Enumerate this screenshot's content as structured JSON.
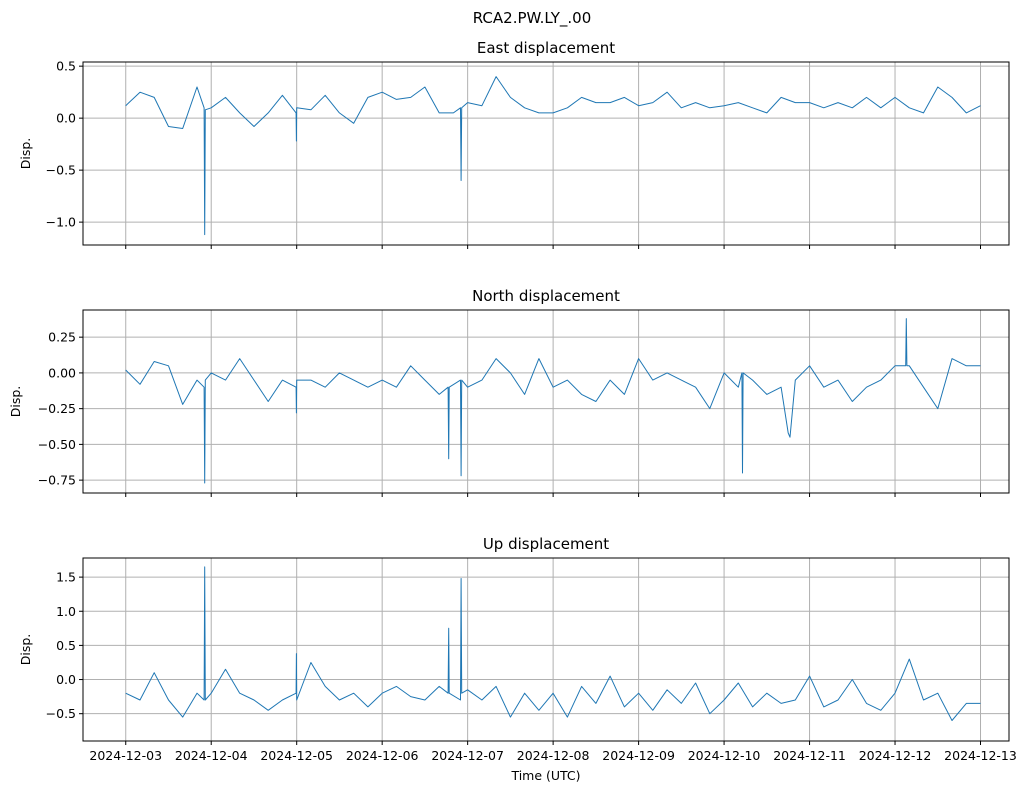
{
  "figure": {
    "suptitle": "RCA2.PW.LY_.00",
    "xlabel": "Time (UTC)",
    "grid": true,
    "sharex": true,
    "line_color": "#1f77b4"
  },
  "chart_data": [
    {
      "type": "line",
      "title": "East displacement",
      "xlabel": "",
      "ylabel": "Disp.",
      "xlim": [
        "2024-12-02T12:00",
        "2024-12-13T08:00"
      ],
      "ylim": [
        -1.22,
        0.54
      ],
      "yticks": [
        0.5,
        0.0,
        -0.5,
        -1.0
      ],
      "ytick_labels": [
        "0.5",
        "0.0",
        "−0.5",
        "−1.0"
      ],
      "xticks": [
        "2024-12-03",
        "2024-12-04",
        "2024-12-05",
        "2024-12-06",
        "2024-12-07",
        "2024-12-08",
        "2024-12-09",
        "2024-12-10",
        "2024-12-11",
        "2024-12-12",
        "2024-12-13"
      ],
      "xtick_labels_visible": false,
      "series": [
        {
          "x": [
            "2024-12-03T00:00",
            "2024-12-03T04:00",
            "2024-12-03T08:00",
            "2024-12-03T12:00",
            "2024-12-03T16:00",
            "2024-12-03T20:00",
            "2024-12-03T22:00",
            "2024-12-03T22:10",
            "2024-12-03T22:20",
            "2024-12-04T00:00",
            "2024-12-04T04:00",
            "2024-12-04T08:00",
            "2024-12-04T12:00",
            "2024-12-04T16:00",
            "2024-12-04T20:00",
            "2024-12-04T23:50",
            "2024-12-04T23:55",
            "2024-12-05T00:00",
            "2024-12-05T04:00",
            "2024-12-05T08:00",
            "2024-12-05T12:00",
            "2024-12-05T16:00",
            "2024-12-05T20:00",
            "2024-12-06T00:00",
            "2024-12-06T04:00",
            "2024-12-06T08:00",
            "2024-12-06T12:00",
            "2024-12-06T16:00",
            "2024-12-06T20:00",
            "2024-12-06T22:00",
            "2024-12-06T22:10",
            "2024-12-06T22:20",
            "2024-12-07T00:00",
            "2024-12-07T04:00",
            "2024-12-07T08:00",
            "2024-12-07T12:00",
            "2024-12-07T16:00",
            "2024-12-07T20:00",
            "2024-12-08T00:00",
            "2024-12-08T04:00",
            "2024-12-08T08:00",
            "2024-12-08T12:00",
            "2024-12-08T16:00",
            "2024-12-08T20:00",
            "2024-12-09T00:00",
            "2024-12-09T04:00",
            "2024-12-09T08:00",
            "2024-12-09T12:00",
            "2024-12-09T16:00",
            "2024-12-09T20:00",
            "2024-12-10T00:00",
            "2024-12-10T04:00",
            "2024-12-10T08:00",
            "2024-12-10T12:00",
            "2024-12-10T16:00",
            "2024-12-10T20:00",
            "2024-12-11T00:00",
            "2024-12-11T04:00",
            "2024-12-11T08:00",
            "2024-12-11T12:00",
            "2024-12-11T16:00",
            "2024-12-11T20:00",
            "2024-12-12T00:00",
            "2024-12-12T04:00",
            "2024-12-12T08:00",
            "2024-12-12T12:00",
            "2024-12-12T16:00",
            "2024-12-12T20:00",
            "2024-12-13T00:00"
          ],
          "y": [
            0.12,
            0.25,
            0.2,
            -0.08,
            -0.1,
            0.3,
            0.1,
            -1.12,
            0.08,
            0.1,
            0.2,
            0.05,
            -0.08,
            0.05,
            0.22,
            0.05,
            -0.22,
            0.1,
            0.08,
            0.22,
            0.05,
            -0.05,
            0.2,
            0.25,
            0.18,
            0.2,
            0.3,
            0.05,
            0.05,
            0.1,
            -0.6,
            0.1,
            0.15,
            0.12,
            0.4,
            0.2,
            0.1,
            0.05,
            0.05,
            0.1,
            0.2,
            0.15,
            0.15,
            0.2,
            0.12,
            0.15,
            0.25,
            0.1,
            0.15,
            0.1,
            0.12,
            0.15,
            0.1,
            0.05,
            0.2,
            0.15,
            0.15,
            0.1,
            0.15,
            0.1,
            0.2,
            0.1,
            0.2,
            0.1,
            0.05,
            0.3,
            0.2,
            0.05,
            0.12
          ]
        }
      ]
    },
    {
      "type": "line",
      "title": "North displacement",
      "xlabel": "",
      "ylabel": "Disp.",
      "xlim": [
        "2024-12-02T12:00",
        "2024-12-13T08:00"
      ],
      "ylim": [
        -0.84,
        0.44
      ],
      "yticks": [
        0.25,
        0.0,
        -0.25,
        -0.5,
        -0.75
      ],
      "ytick_labels": [
        "0.25",
        "0.00",
        "−0.25",
        "−0.50",
        "−0.75"
      ],
      "xticks": [
        "2024-12-03",
        "2024-12-04",
        "2024-12-05",
        "2024-12-06",
        "2024-12-07",
        "2024-12-08",
        "2024-12-09",
        "2024-12-10",
        "2024-12-11",
        "2024-12-12",
        "2024-12-13"
      ],
      "xtick_labels_visible": false,
      "series": [
        {
          "x": [
            "2024-12-03T00:00",
            "2024-12-03T04:00",
            "2024-12-03T08:00",
            "2024-12-03T12:00",
            "2024-12-03T16:00",
            "2024-12-03T20:00",
            "2024-12-03T22:00",
            "2024-12-03T22:10",
            "2024-12-03T22:20",
            "2024-12-04T00:00",
            "2024-12-04T04:00",
            "2024-12-04T08:00",
            "2024-12-04T12:00",
            "2024-12-04T16:00",
            "2024-12-04T20:00",
            "2024-12-04T23:50",
            "2024-12-04T23:55",
            "2024-12-05T00:00",
            "2024-12-05T04:00",
            "2024-12-05T08:00",
            "2024-12-05T12:00",
            "2024-12-05T16:00",
            "2024-12-05T20:00",
            "2024-12-06T00:00",
            "2024-12-06T04:00",
            "2024-12-06T08:00",
            "2024-12-06T12:00",
            "2024-12-06T16:00",
            "2024-12-06T18:30",
            "2024-12-06T18:40",
            "2024-12-06T18:50",
            "2024-12-06T22:00",
            "2024-12-06T22:10",
            "2024-12-06T22:20",
            "2024-12-07T00:00",
            "2024-12-07T04:00",
            "2024-12-07T08:00",
            "2024-12-07T12:00",
            "2024-12-07T16:00",
            "2024-12-07T20:00",
            "2024-12-08T00:00",
            "2024-12-08T04:00",
            "2024-12-08T08:00",
            "2024-12-08T12:00",
            "2024-12-08T16:00",
            "2024-12-08T20:00",
            "2024-12-09T00:00",
            "2024-12-09T04:00",
            "2024-12-09T08:00",
            "2024-12-09T12:00",
            "2024-12-09T16:00",
            "2024-12-09T20:00",
            "2024-12-10T00:00",
            "2024-12-10T04:00",
            "2024-12-10T05:00",
            "2024-12-10T05:10",
            "2024-12-10T05:20",
            "2024-12-10T08:00",
            "2024-12-10T12:00",
            "2024-12-10T16:00",
            "2024-12-10T18:00",
            "2024-12-10T18:30",
            "2024-12-10T20:00",
            "2024-12-11T00:00",
            "2024-12-11T04:00",
            "2024-12-11T08:00",
            "2024-12-11T12:00",
            "2024-12-11T16:00",
            "2024-12-11T20:00",
            "2024-12-12T00:00",
            "2024-12-12T03:00",
            "2024-12-12T03:10",
            "2024-12-12T03:20",
            "2024-12-12T04:00",
            "2024-12-12T08:00",
            "2024-12-12T12:00",
            "2024-12-12T16:00",
            "2024-12-12T20:00",
            "2024-12-13T00:00"
          ],
          "y": [
            0.02,
            -0.08,
            0.08,
            0.05,
            -0.22,
            -0.05,
            -0.1,
            -0.77,
            -0.05,
            0.0,
            -0.05,
            0.1,
            -0.05,
            -0.2,
            -0.05,
            -0.1,
            -0.28,
            -0.05,
            -0.05,
            -0.1,
            0.0,
            -0.05,
            -0.1,
            -0.05,
            -0.1,
            0.05,
            -0.05,
            -0.15,
            -0.1,
            -0.6,
            -0.1,
            -0.05,
            -0.72,
            -0.05,
            -0.1,
            -0.05,
            0.1,
            0.0,
            -0.15,
            0.1,
            -0.1,
            -0.05,
            -0.15,
            -0.2,
            -0.05,
            -0.15,
            0.1,
            -0.05,
            0.0,
            -0.05,
            -0.1,
            -0.25,
            0.0,
            -0.1,
            0.0,
            -0.7,
            0.0,
            -0.05,
            -0.15,
            -0.1,
            -0.42,
            -0.45,
            -0.05,
            0.05,
            -0.1,
            -0.05,
            -0.2,
            -0.1,
            -0.05,
            0.05,
            0.05,
            0.38,
            0.05,
            0.05,
            -0.1,
            -0.25,
            0.1,
            0.05,
            0.05
          ]
        }
      ]
    },
    {
      "type": "line",
      "title": "Up displacement",
      "xlabel": "Time (UTC)",
      "ylabel": "Disp.",
      "xlim": [
        "2024-12-02T12:00",
        "2024-12-13T08:00"
      ],
      "ylim": [
        -0.9,
        1.78
      ],
      "yticks": [
        1.5,
        1.0,
        0.5,
        0.0,
        -0.5
      ],
      "ytick_labels": [
        "1.5",
        "1.0",
        "0.5",
        "0.0",
        "−0.5"
      ],
      "xticks": [
        "2024-12-03",
        "2024-12-04",
        "2024-12-05",
        "2024-12-06",
        "2024-12-07",
        "2024-12-08",
        "2024-12-09",
        "2024-12-10",
        "2024-12-11",
        "2024-12-12",
        "2024-12-13"
      ],
      "xtick_labels_visible": true,
      "series": [
        {
          "x": [
            "2024-12-03T00:00",
            "2024-12-03T04:00",
            "2024-12-03T08:00",
            "2024-12-03T12:00",
            "2024-12-03T16:00",
            "2024-12-03T20:00",
            "2024-12-03T22:00",
            "2024-12-03T22:10",
            "2024-12-03T22:20",
            "2024-12-04T00:00",
            "2024-12-04T04:00",
            "2024-12-04T08:00",
            "2024-12-04T12:00",
            "2024-12-04T16:00",
            "2024-12-04T20:00",
            "2024-12-04T23:50",
            "2024-12-04T23:55",
            "2024-12-05T00:00",
            "2024-12-05T04:00",
            "2024-12-05T08:00",
            "2024-12-05T12:00",
            "2024-12-05T16:00",
            "2024-12-05T20:00",
            "2024-12-06T00:00",
            "2024-12-06T04:00",
            "2024-12-06T08:00",
            "2024-12-06T12:00",
            "2024-12-06T16:00",
            "2024-12-06T18:30",
            "2024-12-06T18:40",
            "2024-12-06T18:50",
            "2024-12-06T22:00",
            "2024-12-06T22:10",
            "2024-12-06T22:20",
            "2024-12-07T00:00",
            "2024-12-07T04:00",
            "2024-12-07T08:00",
            "2024-12-07T12:00",
            "2024-12-07T16:00",
            "2024-12-07T20:00",
            "2024-12-08T00:00",
            "2024-12-08T04:00",
            "2024-12-08T08:00",
            "2024-12-08T12:00",
            "2024-12-08T16:00",
            "2024-12-08T20:00",
            "2024-12-09T00:00",
            "2024-12-09T04:00",
            "2024-12-09T08:00",
            "2024-12-09T12:00",
            "2024-12-09T16:00",
            "2024-12-09T20:00",
            "2024-12-10T00:00",
            "2024-12-10T04:00",
            "2024-12-10T08:00",
            "2024-12-10T12:00",
            "2024-12-10T16:00",
            "2024-12-10T20:00",
            "2024-12-11T00:00",
            "2024-12-11T04:00",
            "2024-12-11T08:00",
            "2024-12-11T12:00",
            "2024-12-11T16:00",
            "2024-12-11T20:00",
            "2024-12-12T00:00",
            "2024-12-12T04:00",
            "2024-12-12T08:00",
            "2024-12-12T12:00",
            "2024-12-12T16:00",
            "2024-12-12T20:00",
            "2024-12-13T00:00"
          ],
          "y": [
            -0.2,
            -0.3,
            0.1,
            -0.3,
            -0.55,
            -0.2,
            -0.3,
            1.65,
            -0.3,
            -0.2,
            0.15,
            -0.2,
            -0.3,
            -0.45,
            -0.3,
            -0.2,
            0.38,
            -0.3,
            0.25,
            -0.1,
            -0.3,
            -0.2,
            -0.4,
            -0.2,
            -0.1,
            -0.25,
            -0.3,
            -0.1,
            -0.2,
            0.75,
            -0.2,
            -0.3,
            1.48,
            -0.2,
            -0.15,
            -0.3,
            -0.1,
            -0.55,
            -0.2,
            -0.45,
            -0.2,
            -0.55,
            -0.1,
            -0.35,
            0.05,
            -0.4,
            -0.2,
            -0.45,
            -0.15,
            -0.35,
            -0.05,
            -0.5,
            -0.3,
            -0.05,
            -0.4,
            -0.2,
            -0.35,
            -0.3,
            0.05,
            -0.4,
            -0.3,
            0.0,
            -0.35,
            -0.45,
            -0.2,
            0.3,
            -0.3,
            -0.2,
            -0.6,
            -0.35,
            -0.35
          ]
        }
      ]
    }
  ]
}
